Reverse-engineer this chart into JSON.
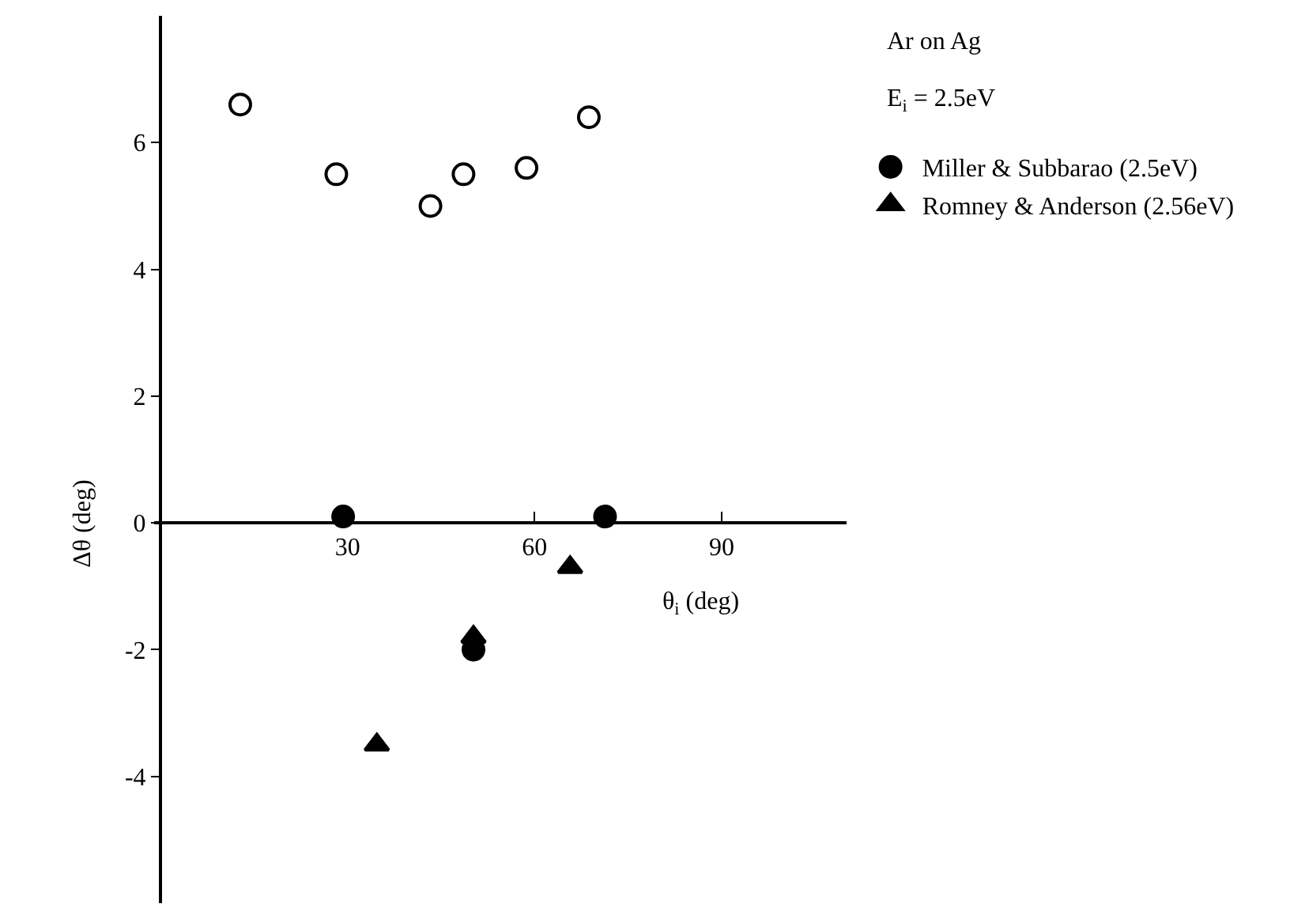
{
  "chart_data": {
    "type": "scatter",
    "xlabel": "θ$_{i}$ (deg)",
    "ylabel": "Δθ (deg)",
    "annotations": [
      "Ar on Ag",
      "E$_{i}$ = 2.5eV"
    ],
    "xlim": [
      -1,
      110
    ],
    "ylim": [
      -6,
      8
    ],
    "xticks": [
      30,
      60,
      90
    ],
    "yticks": [
      -4,
      -2,
      0,
      2,
      4,
      6
    ],
    "legend": "right",
    "series": [
      {
        "color": "#000000",
        "marker": "circle-open",
        "x": [
          12.8,
          28.2,
          43.3,
          48.6,
          58.7,
          68.7
        ],
        "values": [
          6.6,
          5.5,
          5.0,
          5.5,
          5.6,
          6.4
        ]
      },
      {
        "name": "Miller & Subbarao (2.5eV)",
        "color": "#000000",
        "marker": "circle",
        "x": [
          29.3,
          50.2,
          71.3
        ],
        "values": [
          0.1,
          -2.0,
          0.1
        ]
      },
      {
        "name": "Romney & Anderson (2.56eV)",
        "color": "#000000",
        "marker": "triangle",
        "x": [
          34.7,
          50.2,
          65.7
        ],
        "values": [
          -3.5,
          -1.8,
          -0.7
        ]
      }
    ]
  }
}
